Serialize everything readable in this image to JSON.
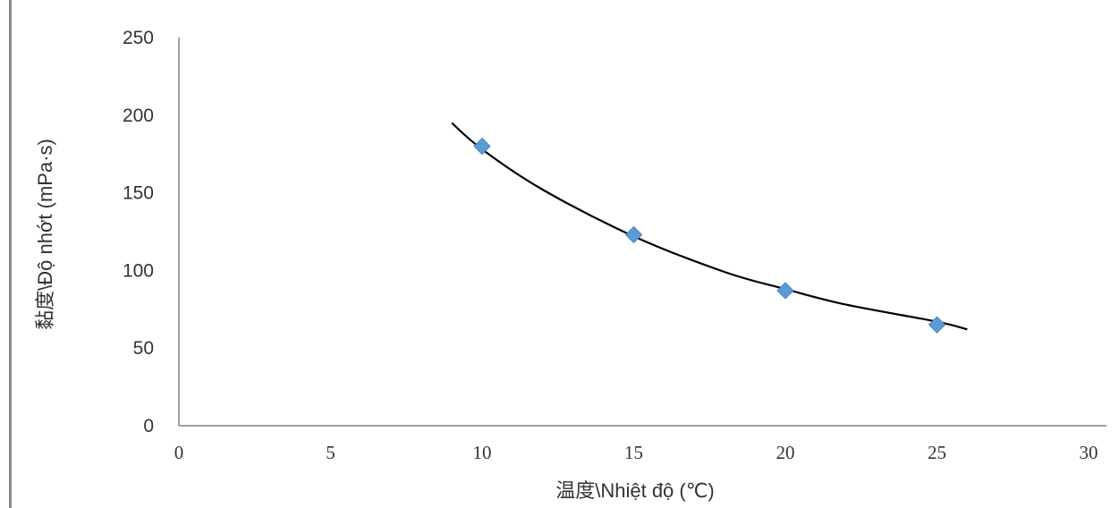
{
  "chart_data": {
    "type": "scatter",
    "title": "",
    "xlabel": "温度\\Nhiệt độ (℃)",
    "ylabel": "黏度\\Độ nhớt (mPa·s)",
    "xlim": [
      0,
      30
    ],
    "ylim": [
      0,
      250
    ],
    "x_ticks": [
      "0",
      "5",
      "10",
      "15",
      "20",
      "25",
      "30"
    ],
    "y_ticks": [
      "0",
      "50",
      "100",
      "150",
      "200",
      "250"
    ],
    "grid": false,
    "legend": "none",
    "series": [
      {
        "marker": "diamond",
        "color": "#5b9bd5",
        "points": [
          {
            "x": 10,
            "y": 180
          },
          {
            "x": 15,
            "y": 123
          },
          {
            "x": 20,
            "y": 87
          },
          {
            "x": 25,
            "y": 65
          }
        ]
      }
    ],
    "trendline": {
      "type": "exponential",
      "color": "#000000",
      "points": [
        {
          "x": 9,
          "y": 195
        },
        {
          "x": 10,
          "y": 178
        },
        {
          "x": 12,
          "y": 152
        },
        {
          "x": 15,
          "y": 122
        },
        {
          "x": 18,
          "y": 99
        },
        {
          "x": 20,
          "y": 88
        },
        {
          "x": 22,
          "y": 78
        },
        {
          "x": 25,
          "y": 67
        },
        {
          "x": 26,
          "y": 62
        }
      ]
    }
  }
}
